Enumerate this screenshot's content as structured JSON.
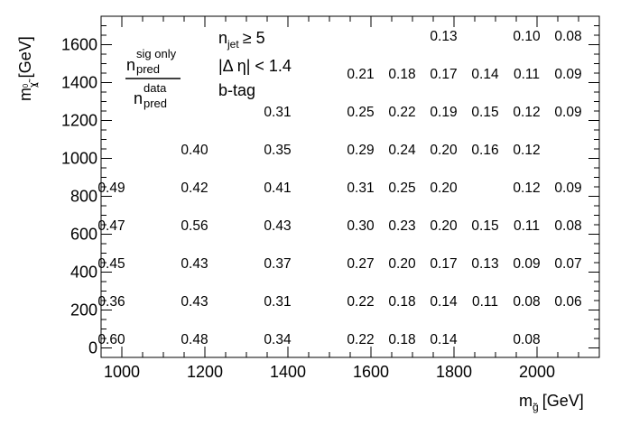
{
  "chart_data": {
    "type": "table",
    "description_ratio": {
      "numerator": "n",
      "numerator_sup": "sig only",
      "numerator_sub": "pred",
      "denominator": "n",
      "denominator_sup": "data",
      "denominator_sub": "pred"
    },
    "selection": {
      "line1": "n",
      "line1_sub": "jet",
      "line1_rest": "≥ 5",
      "line2": "|Δ η| < 1.4",
      "line3": "b-tag"
    },
    "xlabel": {
      "main": "m",
      "sub": "g̃",
      "unit": "[GeV]"
    },
    "ylabel": {
      "main": "m",
      "sub": "χ̃",
      "sub_sup": "0",
      "sub_index": "1",
      "unit": "[GeV]"
    },
    "xlim": [
      950,
      2150
    ],
    "ylim": [
      -50,
      1750
    ],
    "x_ticks": [
      1000,
      1200,
      1400,
      1600,
      1800,
      2000
    ],
    "x_tick_labels": [
      "1000",
      "1200",
      "1400",
      "1600",
      "1800",
      "2000"
    ],
    "y_ticks": [
      0,
      200,
      400,
      600,
      800,
      1000,
      1200,
      1400,
      1600
    ],
    "y_tick_labels": [
      "0",
      "200",
      "400",
      "600",
      "800",
      "1000",
      "1200",
      "1400",
      "1600"
    ],
    "cells": [
      {
        "x": 1775,
        "y": 1650,
        "v": "0.13"
      },
      {
        "x": 1975,
        "y": 1650,
        "v": "0.10"
      },
      {
        "x": 2075,
        "y": 1650,
        "v": "0.08"
      },
      {
        "x": 1575,
        "y": 1450,
        "v": "0.21"
      },
      {
        "x": 1675,
        "y": 1450,
        "v": "0.18"
      },
      {
        "x": 1775,
        "y": 1450,
        "v": "0.17"
      },
      {
        "x": 1875,
        "y": 1450,
        "v": "0.14"
      },
      {
        "x": 1975,
        "y": 1450,
        "v": "0.11"
      },
      {
        "x": 2075,
        "y": 1450,
        "v": "0.09"
      },
      {
        "x": 1375,
        "y": 1250,
        "v": "0.31"
      },
      {
        "x": 1575,
        "y": 1250,
        "v": "0.25"
      },
      {
        "x": 1675,
        "y": 1250,
        "v": "0.22"
      },
      {
        "x": 1775,
        "y": 1250,
        "v": "0.19"
      },
      {
        "x": 1875,
        "y": 1250,
        "v": "0.15"
      },
      {
        "x": 1975,
        "y": 1250,
        "v": "0.12"
      },
      {
        "x": 2075,
        "y": 1250,
        "v": "0.09"
      },
      {
        "x": 1175,
        "y": 1050,
        "v": "0.40"
      },
      {
        "x": 1375,
        "y": 1050,
        "v": "0.35"
      },
      {
        "x": 1575,
        "y": 1050,
        "v": "0.29"
      },
      {
        "x": 1675,
        "y": 1050,
        "v": "0.24"
      },
      {
        "x": 1775,
        "y": 1050,
        "v": "0.20"
      },
      {
        "x": 1875,
        "y": 1050,
        "v": "0.16"
      },
      {
        "x": 1975,
        "y": 1050,
        "v": "0.12"
      },
      {
        "x": 975,
        "y": 850,
        "v": "0.49"
      },
      {
        "x": 1175,
        "y": 850,
        "v": "0.42"
      },
      {
        "x": 1375,
        "y": 850,
        "v": "0.41"
      },
      {
        "x": 1575,
        "y": 850,
        "v": "0.31"
      },
      {
        "x": 1675,
        "y": 850,
        "v": "0.25"
      },
      {
        "x": 1775,
        "y": 850,
        "v": "0.20"
      },
      {
        "x": 1975,
        "y": 850,
        "v": "0.12"
      },
      {
        "x": 2075,
        "y": 850,
        "v": "0.09"
      },
      {
        "x": 975,
        "y": 650,
        "v": "0.47"
      },
      {
        "x": 1175,
        "y": 650,
        "v": "0.56"
      },
      {
        "x": 1375,
        "y": 650,
        "v": "0.43"
      },
      {
        "x": 1575,
        "y": 650,
        "v": "0.30"
      },
      {
        "x": 1675,
        "y": 650,
        "v": "0.23"
      },
      {
        "x": 1775,
        "y": 650,
        "v": "0.20"
      },
      {
        "x": 1875,
        "y": 650,
        "v": "0.15"
      },
      {
        "x": 1975,
        "y": 650,
        "v": "0.11"
      },
      {
        "x": 2075,
        "y": 650,
        "v": "0.08"
      },
      {
        "x": 975,
        "y": 450,
        "v": "0.45"
      },
      {
        "x": 1175,
        "y": 450,
        "v": "0.43"
      },
      {
        "x": 1375,
        "y": 450,
        "v": "0.37"
      },
      {
        "x": 1575,
        "y": 450,
        "v": "0.27"
      },
      {
        "x": 1675,
        "y": 450,
        "v": "0.20"
      },
      {
        "x": 1775,
        "y": 450,
        "v": "0.17"
      },
      {
        "x": 1875,
        "y": 450,
        "v": "0.13"
      },
      {
        "x": 1975,
        "y": 450,
        "v": "0.09"
      },
      {
        "x": 2075,
        "y": 450,
        "v": "0.07"
      },
      {
        "x": 975,
        "y": 250,
        "v": "0.36"
      },
      {
        "x": 1175,
        "y": 250,
        "v": "0.43"
      },
      {
        "x": 1375,
        "y": 250,
        "v": "0.31"
      },
      {
        "x": 1575,
        "y": 250,
        "v": "0.22"
      },
      {
        "x": 1675,
        "y": 250,
        "v": "0.18"
      },
      {
        "x": 1775,
        "y": 250,
        "v": "0.14"
      },
      {
        "x": 1875,
        "y": 250,
        "v": "0.11"
      },
      {
        "x": 1975,
        "y": 250,
        "v": "0.08"
      },
      {
        "x": 2075,
        "y": 250,
        "v": "0.06"
      },
      {
        "x": 975,
        "y": 50,
        "v": "0.60"
      },
      {
        "x": 1175,
        "y": 50,
        "v": "0.48"
      },
      {
        "x": 1375,
        "y": 50,
        "v": "0.34"
      },
      {
        "x": 1575,
        "y": 50,
        "v": "0.22"
      },
      {
        "x": 1675,
        "y": 50,
        "v": "0.18"
      },
      {
        "x": 1775,
        "y": 50,
        "v": "0.14"
      },
      {
        "x": 1975,
        "y": 50,
        "v": "0.08"
      }
    ]
  }
}
